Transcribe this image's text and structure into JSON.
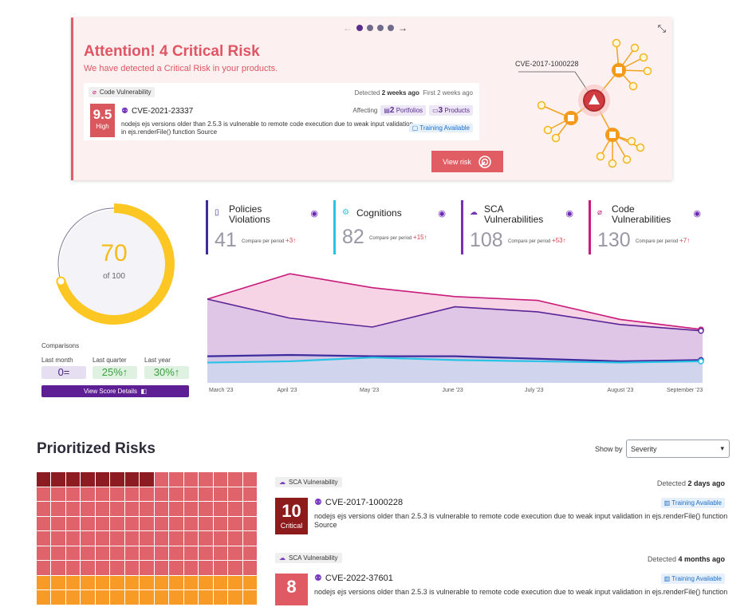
{
  "banner": {
    "title": "Attention! 4 Critical Risk",
    "subtitle": "We have detected a Critical Risk in your products.",
    "tag": "Code Vulnerability",
    "detected_prefix": "Detected",
    "detected_value": "2 weeks ago",
    "first_seen": "First 2 weeks ago",
    "score": "9.5",
    "severity": "High",
    "cve": "CVE-2021-23337",
    "description": "nodejs ejs versions older than 2.5.3 is vulnerable to remote code execution due to weak input validation in ejs.renderFile() function Source",
    "affecting_label": "Affecting",
    "portfolios_count": "2",
    "portfolios_label": "Portfolios",
    "products_count": "3",
    "products_label": "Products",
    "training": "Training Available",
    "view_button": "View risk",
    "graph_cve": "CVE-2017-1000228",
    "carousel_active": 1,
    "carousel_total": 4
  },
  "score": {
    "value": "70",
    "of": "of 100",
    "percent": 70,
    "comparisons_title": "Comparisons",
    "last_month_label": "Last month",
    "last_month_value": "0=",
    "last_quarter_label": "Last quarter",
    "last_quarter_value": "25%↑",
    "last_year_label": "Last year",
    "last_year_value": "30%↑",
    "button": "View Score Details"
  },
  "metrics": [
    {
      "title": "Policies Violations",
      "value": "41",
      "compare": "Compare per period",
      "delta": "+3↑",
      "color": "#3c2c9e",
      "icon": "document-icon"
    },
    {
      "title": "Cognitions",
      "value": "82",
      "compare": "Compare per period",
      "delta": "+15↑",
      "color": "#27c4e6",
      "icon": "gear-icon"
    },
    {
      "title": "SCA Vulnerabilities",
      "value": "108",
      "compare": "Compare per period",
      "delta": "+53↑",
      "color": "#7434b0",
      "icon": "cloud-icon"
    },
    {
      "title": "Code Vulnerabilities",
      "value": "130",
      "compare": "Compare per period",
      "delta": "+7↑",
      "color": "#c81b7a",
      "icon": "code-bug-icon"
    }
  ],
  "chart_data": {
    "type": "area",
    "categories": [
      "March '23",
      "April '23",
      "May '23",
      "June '23",
      "July '23",
      "August '23",
      "September '23"
    ],
    "series": [
      {
        "color": "#c81b7a",
        "values": [
          128,
          148,
          137,
          130,
          127,
          112,
          104
        ]
      },
      {
        "color": "#5b2597",
        "values": [
          128,
          113,
          106,
          122,
          118,
          108,
          103
        ]
      },
      {
        "color": "#3c2c9e",
        "values": [
          83,
          84,
          83,
          83,
          81,
          79,
          80
        ]
      },
      {
        "color": "#27c4e6",
        "values": [
          78,
          79,
          82,
          80,
          79,
          78,
          79
        ]
      }
    ],
    "ylim": [
      62,
      150
    ]
  },
  "prioritized": {
    "title": "Prioritized Risks",
    "show_by_label": "Show by",
    "show_by_value": "Severity",
    "heatmap_cells": {
      "dark": 8,
      "red": 97,
      "orange": 30
    }
  },
  "risks": [
    {
      "tag": "SCA Vulnerability",
      "detected_prefix": "Detected",
      "detected_value": "2 days ago",
      "score": "10",
      "severity": "Critical",
      "cve": "CVE-2017-1000228",
      "training": "Training Available",
      "description": "nodejs ejs versions older than 2.5.3 is vulnerable to remote code execution due to weak input validation in ejs.renderFile() function Source",
      "color": "#8e1b1b"
    },
    {
      "tag": "SCA Vulnerability",
      "detected_prefix": "Detected",
      "detected_value": "4 months ago",
      "score": "8",
      "severity": "",
      "cve": "CVE-2022-37601",
      "training": "Training Available",
      "description": "nodejs ejs versions older than 2.5.3 is vulnerable to remote code execution due to weak input validation in ejs.renderFile() function",
      "color": "#e05a63"
    }
  ]
}
